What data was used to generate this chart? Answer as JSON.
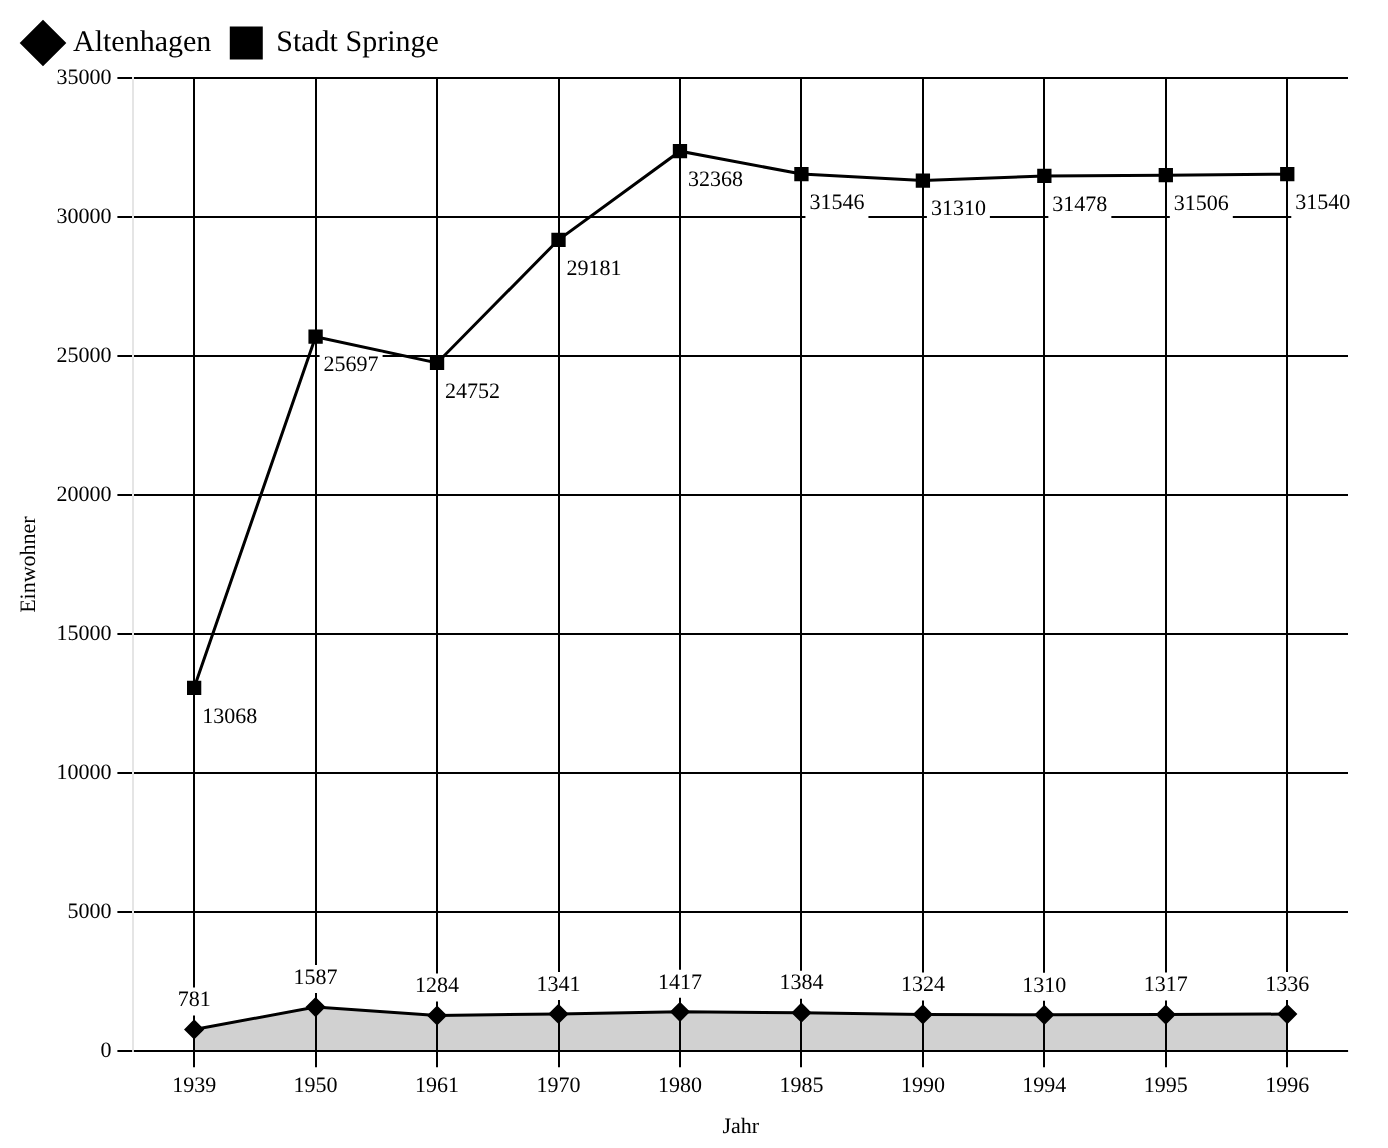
{
  "chart_data": {
    "type": "line",
    "xlabel": "Jahr",
    "ylabel": "Einwohner",
    "categories": [
      "1939",
      "1950",
      "1961",
      "1970",
      "1980",
      "1985",
      "1990",
      "1994",
      "1995",
      "1996"
    ],
    "series": [
      {
        "name": "Altenhagen",
        "type": "area",
        "marker": "diamond",
        "color": "#000000",
        "values": [
          781,
          1587,
          1284,
          1341,
          1417,
          1384,
          1324,
          1310,
          1317,
          1336
        ]
      },
      {
        "name": "Stadt Springe",
        "type": "line",
        "marker": "square",
        "color": "#000000",
        "values": [
          13068,
          25697,
          24752,
          29181,
          32368,
          31546,
          31310,
          31478,
          31506,
          31540
        ]
      }
    ],
    "ylim": [
      0,
      35000
    ],
    "yticks": [
      0,
      5000,
      10000,
      15000,
      20000,
      25000,
      30000,
      35000
    ],
    "grid": true,
    "legend": "top left",
    "data_labels": true
  }
}
